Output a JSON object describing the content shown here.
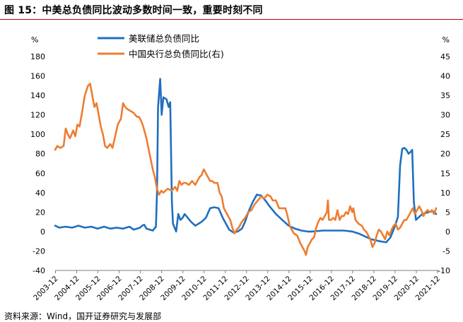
{
  "figure_title": "图 15：中美总负债同比波动多数时间一致，重要时刻不同",
  "source_note": "资料来源：Wind，国开证券研究与发展部",
  "colors": {
    "fed": "#1f6fbf",
    "pboc": "#ed7d31",
    "rule": "#c00000"
  },
  "chart_data": {
    "type": "line",
    "title": "",
    "x_categories": [
      "2003-12",
      "2004-12",
      "2005-12",
      "2006-12",
      "2007-12",
      "2008-12",
      "2009-12",
      "2010-12",
      "2011-12",
      "2012-12",
      "2013-12",
      "2014-12",
      "2015-12",
      "2016-12",
      "2017-12",
      "2018-12",
      "2019-12",
      "2020-12",
      "2021-12"
    ],
    "x_range": [
      2003.9,
      2021.95
    ],
    "left_axis": {
      "unit": "%",
      "range": [
        -40,
        180
      ],
      "ticks": [
        -40,
        -20,
        0,
        20,
        40,
        60,
        80,
        100,
        120,
        140,
        160,
        180
      ]
    },
    "right_axis": {
      "unit": "%",
      "range": [
        -10,
        45
      ],
      "ticks": [
        -10,
        -5,
        0,
        5,
        10,
        15,
        20,
        25,
        30,
        35,
        40,
        45
      ]
    },
    "legend_position": "top-center",
    "grid": false,
    "series": [
      {
        "name": "美联储总负债同比",
        "axis": "left",
        "color": "#1f6fbf",
        "points": [
          [
            2003.9,
            6
          ],
          [
            2004.1,
            4
          ],
          [
            2004.4,
            5
          ],
          [
            2004.7,
            4
          ],
          [
            2005.0,
            6
          ],
          [
            2005.3,
            4
          ],
          [
            2005.6,
            5
          ],
          [
            2005.9,
            3
          ],
          [
            2006.2,
            5
          ],
          [
            2006.5,
            3
          ],
          [
            2006.8,
            4
          ],
          [
            2007.1,
            3
          ],
          [
            2007.4,
            5
          ],
          [
            2007.6,
            2
          ],
          [
            2007.9,
            4
          ],
          [
            2008.0,
            6
          ],
          [
            2008.1,
            7
          ],
          [
            2008.2,
            3
          ],
          [
            2008.5,
            1
          ],
          [
            2008.65,
            5
          ],
          [
            2008.7,
            40
          ],
          [
            2008.75,
            128
          ],
          [
            2008.85,
            157
          ],
          [
            2008.92,
            120
          ],
          [
            2009.0,
            138
          ],
          [
            2009.15,
            136
          ],
          [
            2009.25,
            128
          ],
          [
            2009.32,
            133
          ],
          [
            2009.4,
            30
          ],
          [
            2009.45,
            8
          ],
          [
            2009.6,
            0
          ],
          [
            2009.7,
            18
          ],
          [
            2009.8,
            12
          ],
          [
            2009.9,
            14
          ],
          [
            2010.0,
            18
          ],
          [
            2010.3,
            10
          ],
          [
            2010.5,
            6
          ],
          [
            2010.8,
            10
          ],
          [
            2011.0,
            14
          ],
          [
            2011.2,
            24
          ],
          [
            2011.4,
            25
          ],
          [
            2011.6,
            24
          ],
          [
            2011.8,
            14
          ],
          [
            2011.95,
            8
          ],
          [
            2012.1,
            2
          ],
          [
            2012.3,
            -1
          ],
          [
            2012.5,
            0
          ],
          [
            2012.7,
            3
          ],
          [
            2012.85,
            10
          ],
          [
            2013.0,
            20
          ],
          [
            2013.2,
            30
          ],
          [
            2013.4,
            38
          ],
          [
            2013.6,
            37
          ],
          [
            2013.8,
            32
          ],
          [
            2014.0,
            26
          ],
          [
            2014.3,
            18
          ],
          [
            2014.6,
            12
          ],
          [
            2014.9,
            6
          ],
          [
            2015.2,
            3
          ],
          [
            2015.5,
            1
          ],
          [
            2015.8,
            0
          ],
          [
            2016.0,
            0
          ],
          [
            2016.5,
            1
          ],
          [
            2017.0,
            1
          ],
          [
            2017.5,
            1
          ],
          [
            2017.9,
            0
          ],
          [
            2018.2,
            -2
          ],
          [
            2018.5,
            -5
          ],
          [
            2018.8,
            -8
          ],
          [
            2019.2,
            -10
          ],
          [
            2019.5,
            -11
          ],
          [
            2019.7,
            -6
          ],
          [
            2019.9,
            5
          ],
          [
            2020.05,
            15
          ],
          [
            2020.15,
            68
          ],
          [
            2020.25,
            85
          ],
          [
            2020.35,
            86
          ],
          [
            2020.45,
            84
          ],
          [
            2020.55,
            80
          ],
          [
            2020.65,
            82
          ],
          [
            2020.72,
            84
          ],
          [
            2020.8,
            30
          ],
          [
            2020.9,
            12
          ],
          [
            2021.0,
            14
          ],
          [
            2021.2,
            18
          ],
          [
            2021.5,
            20
          ],
          [
            2021.7,
            21
          ],
          [
            2021.85,
            18
          ]
        ]
      },
      {
        "name": "中国央行总负债同比(右)",
        "axis": "right",
        "color": "#ed7d31",
        "points": [
          [
            2003.9,
            21
          ],
          [
            2004.0,
            22
          ],
          [
            2004.15,
            21.5
          ],
          [
            2004.3,
            22
          ],
          [
            2004.4,
            26.5
          ],
          [
            2004.5,
            25
          ],
          [
            2004.6,
            24
          ],
          [
            2004.75,
            26
          ],
          [
            2004.85,
            24.5
          ],
          [
            2004.95,
            27.5
          ],
          [
            2005.05,
            27
          ],
          [
            2005.15,
            30
          ],
          [
            2005.3,
            35
          ],
          [
            2005.45,
            37.5
          ],
          [
            2005.55,
            38
          ],
          [
            2005.65,
            35
          ],
          [
            2005.75,
            32
          ],
          [
            2005.85,
            33
          ],
          [
            2005.95,
            30
          ],
          [
            2006.05,
            27
          ],
          [
            2006.15,
            25
          ],
          [
            2006.25,
            22
          ],
          [
            2006.35,
            21.5
          ],
          [
            2006.5,
            22.5
          ],
          [
            2006.6,
            21.5
          ],
          [
            2006.75,
            25
          ],
          [
            2006.85,
            27.5
          ],
          [
            2007.0,
            29
          ],
          [
            2007.1,
            33
          ],
          [
            2007.2,
            32
          ],
          [
            2007.3,
            31.5
          ],
          [
            2007.45,
            31
          ],
          [
            2007.6,
            30.5
          ],
          [
            2007.75,
            29.5
          ],
          [
            2007.85,
            29.5
          ],
          [
            2007.95,
            28.5
          ],
          [
            2008.05,
            27
          ],
          [
            2008.2,
            24
          ],
          [
            2008.35,
            20
          ],
          [
            2008.5,
            16
          ],
          [
            2008.6,
            14
          ],
          [
            2008.7,
            11
          ],
          [
            2008.8,
            9.5
          ],
          [
            2008.9,
            10.5
          ],
          [
            2009.0,
            10
          ],
          [
            2009.2,
            11
          ],
          [
            2009.4,
            10.5
          ],
          [
            2009.55,
            11.5
          ],
          [
            2009.65,
            10.5
          ],
          [
            2009.75,
            13
          ],
          [
            2009.85,
            12
          ],
          [
            2009.95,
            12.5
          ],
          [
            2010.05,
            12.5
          ],
          [
            2010.2,
            12
          ],
          [
            2010.35,
            13
          ],
          [
            2010.5,
            12
          ],
          [
            2010.6,
            13
          ],
          [
            2010.7,
            14
          ],
          [
            2010.8,
            14.5
          ],
          [
            2010.9,
            16
          ],
          [
            2011.0,
            15
          ],
          [
            2011.1,
            14
          ],
          [
            2011.2,
            13
          ],
          [
            2011.3,
            13
          ],
          [
            2011.4,
            12.5
          ],
          [
            2011.55,
            12.5
          ],
          [
            2011.65,
            10
          ],
          [
            2011.75,
            9
          ],
          [
            2011.85,
            6
          ],
          [
            2011.95,
            5
          ],
          [
            2012.05,
            4
          ],
          [
            2012.15,
            3
          ],
          [
            2012.25,
            1
          ],
          [
            2012.35,
            -0.5
          ],
          [
            2012.45,
            0.5
          ],
          [
            2012.55,
            1
          ],
          [
            2012.7,
            2.5
          ],
          [
            2012.85,
            3.5
          ],
          [
            2013.0,
            5
          ],
          [
            2013.15,
            5.5
          ],
          [
            2013.3,
            7
          ],
          [
            2013.45,
            8
          ],
          [
            2013.6,
            9
          ],
          [
            2013.75,
            8.5
          ],
          [
            2013.9,
            9.5
          ],
          [
            2014.05,
            9
          ],
          [
            2014.15,
            8
          ],
          [
            2014.3,
            8
          ],
          [
            2014.45,
            6
          ],
          [
            2014.6,
            6
          ],
          [
            2014.75,
            6
          ],
          [
            2014.85,
            4
          ],
          [
            2014.95,
            1.5
          ],
          [
            2015.05,
            0.5
          ],
          [
            2015.15,
            -0.5
          ],
          [
            2015.3,
            -1
          ],
          [
            2015.45,
            -3
          ],
          [
            2015.55,
            -4
          ],
          [
            2015.65,
            -5
          ],
          [
            2015.72,
            -6
          ],
          [
            2015.8,
            -4
          ],
          [
            2015.9,
            -3
          ],
          [
            2016.0,
            -2
          ],
          [
            2016.1,
            -1.5
          ],
          [
            2016.2,
            1
          ],
          [
            2016.3,
            2.5
          ],
          [
            2016.4,
            3.5
          ],
          [
            2016.5,
            3
          ],
          [
            2016.6,
            4
          ],
          [
            2016.7,
            5
          ],
          [
            2016.75,
            8
          ],
          [
            2016.8,
            3
          ],
          [
            2016.9,
            3
          ],
          [
            2017.0,
            3.5
          ],
          [
            2017.1,
            3
          ],
          [
            2017.2,
            5.5
          ],
          [
            2017.3,
            3
          ],
          [
            2017.4,
            4
          ],
          [
            2017.5,
            4
          ],
          [
            2017.6,
            5
          ],
          [
            2017.7,
            4.5
          ],
          [
            2017.8,
            6.5
          ],
          [
            2017.9,
            5
          ],
          [
            2017.95,
            6
          ],
          [
            2018.05,
            3
          ],
          [
            2018.2,
            2
          ],
          [
            2018.35,
            1.5
          ],
          [
            2018.45,
            0.5
          ],
          [
            2018.55,
            0
          ],
          [
            2018.65,
            -1
          ],
          [
            2018.75,
            -2
          ],
          [
            2018.85,
            -4
          ],
          [
            2018.95,
            -3
          ],
          [
            2019.05,
            -1
          ],
          [
            2019.15,
            0.5
          ],
          [
            2019.25,
            0
          ],
          [
            2019.35,
            -1
          ],
          [
            2019.45,
            -2
          ],
          [
            2019.55,
            0
          ],
          [
            2019.65,
            -1
          ],
          [
            2019.75,
            0.5
          ],
          [
            2019.85,
            1.5
          ],
          [
            2019.95,
            2
          ],
          [
            2020.05,
            0.5
          ],
          [
            2020.15,
            1
          ],
          [
            2020.25,
            2
          ],
          [
            2020.35,
            3
          ],
          [
            2020.45,
            3
          ],
          [
            2020.55,
            4
          ],
          [
            2020.65,
            5
          ],
          [
            2020.75,
            6
          ],
          [
            2020.85,
            4.5
          ],
          [
            2020.95,
            5.5
          ],
          [
            2021.05,
            6.5
          ],
          [
            2021.15,
            5.5
          ],
          [
            2021.25,
            4
          ],
          [
            2021.35,
            5
          ],
          [
            2021.45,
            5.5
          ],
          [
            2021.55,
            5
          ],
          [
            2021.65,
            5.5
          ],
          [
            2021.75,
            4.5
          ],
          [
            2021.85,
            6
          ]
        ]
      }
    ]
  }
}
